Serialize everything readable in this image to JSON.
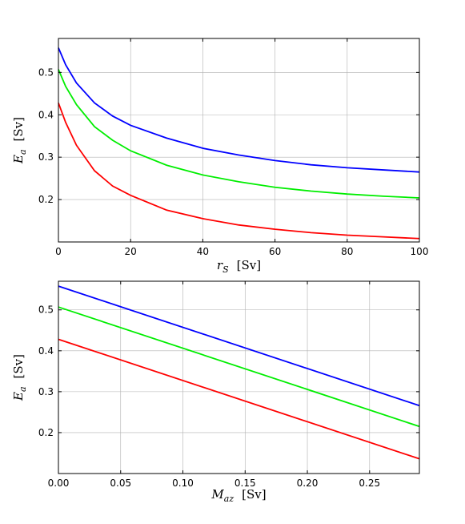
{
  "chart_data": [
    {
      "type": "line",
      "title": "",
      "xlabel": {
        "main": "r",
        "sub": "S",
        "unit": "[Sv]"
      },
      "ylabel": {
        "main": "E",
        "sub": "a",
        "unit": "[Sv]"
      },
      "xlim": [
        0,
        100
      ],
      "ylim": [
        0.1,
        0.58
      ],
      "xticks": [
        0,
        20,
        40,
        60,
        80,
        100
      ],
      "xtick_labels": [
        "0",
        "20",
        "40",
        "60",
        "80",
        "100"
      ],
      "yticks": [
        0.2,
        0.3,
        0.4,
        0.5
      ],
      "ytick_labels": [
        "0.2",
        "0.3",
        "0.4",
        "0.5"
      ],
      "grid": true,
      "series": [
        {
          "color": "#0000ff",
          "x": [
            0,
            2,
            5,
            10,
            15,
            20,
            30,
            40,
            50,
            60,
            70,
            80,
            90,
            100
          ],
          "y": [
            0.558,
            0.518,
            0.475,
            0.428,
            0.397,
            0.375,
            0.345,
            0.321,
            0.305,
            0.292,
            0.282,
            0.275,
            0.27,
            0.265
          ]
        },
        {
          "color": "#00ee00",
          "x": [
            0,
            2,
            5,
            10,
            15,
            20,
            30,
            40,
            50,
            60,
            70,
            80,
            90,
            100
          ],
          "y": [
            0.507,
            0.467,
            0.424,
            0.372,
            0.34,
            0.315,
            0.281,
            0.258,
            0.242,
            0.229,
            0.22,
            0.213,
            0.208,
            0.204
          ]
        },
        {
          "color": "#ff0000",
          "x": [
            0,
            2,
            5,
            10,
            15,
            20,
            30,
            40,
            50,
            60,
            70,
            80,
            90,
            100
          ],
          "y": [
            0.428,
            0.382,
            0.328,
            0.268,
            0.232,
            0.21,
            0.175,
            0.155,
            0.14,
            0.13,
            0.122,
            0.116,
            0.112,
            0.108
          ]
        }
      ]
    },
    {
      "type": "line",
      "title": "",
      "xlabel": {
        "main": "M",
        "sub": "az",
        "unit": "[Sv]"
      },
      "ylabel": {
        "main": "E",
        "sub": "a",
        "unit": "[Sv]"
      },
      "xlim": [
        0,
        0.29
      ],
      "ylim": [
        0.1,
        0.57
      ],
      "xticks": [
        0,
        0.05,
        0.1,
        0.15,
        0.2,
        0.25
      ],
      "xtick_labels": [
        "0.00",
        "0.05",
        "0.10",
        "0.15",
        "0.20",
        "0.25"
      ],
      "yticks": [
        0.2,
        0.3,
        0.4,
        0.5
      ],
      "ytick_labels": [
        "0.2",
        "0.3",
        "0.4",
        "0.5"
      ],
      "grid": true,
      "series": [
        {
          "color": "#0000ff",
          "x": [
            0,
            0.29
          ],
          "y": [
            0.558,
            0.266
          ]
        },
        {
          "color": "#00ee00",
          "x": [
            0,
            0.29
          ],
          "y": [
            0.507,
            0.215
          ]
        },
        {
          "color": "#ff0000",
          "x": [
            0,
            0.29
          ],
          "y": [
            0.428,
            0.136
          ]
        }
      ]
    }
  ]
}
